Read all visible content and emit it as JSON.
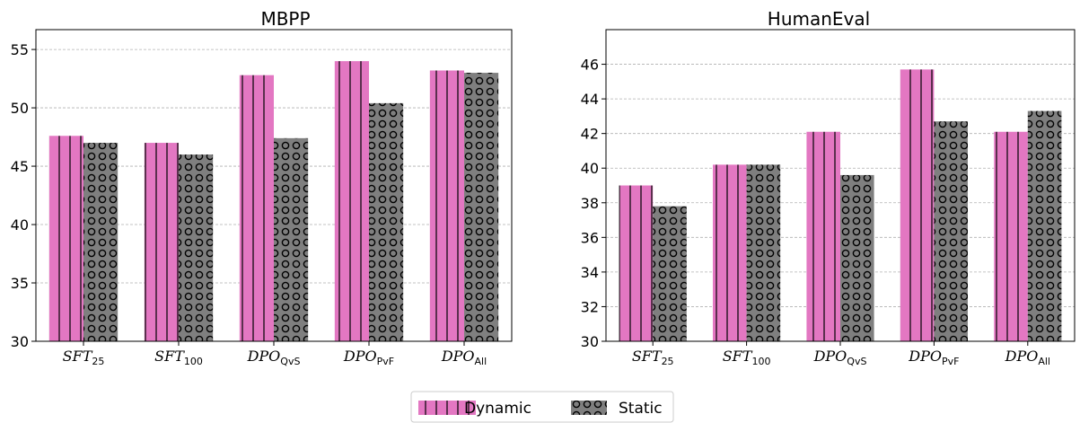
{
  "chart_data": [
    {
      "type": "bar",
      "title": "MBPP",
      "categories": [
        {
          "base": "SFT",
          "sub": "25"
        },
        {
          "base": "SFT",
          "sub": "100"
        },
        {
          "base": "DPO",
          "sub": "QvS"
        },
        {
          "base": "DPO",
          "sub": "PvF"
        },
        {
          "base": "DPO",
          "sub": "All"
        }
      ],
      "series": [
        {
          "name": "Dynamic",
          "values": [
            47.6,
            47.0,
            52.8,
            54.0,
            53.2
          ]
        },
        {
          "name": "Static",
          "values": [
            47.0,
            46.0,
            47.4,
            50.4,
            53.0
          ]
        }
      ],
      "ylim": [
        30,
        56.7
      ],
      "yticks": [
        "30",
        "35",
        "40",
        "45",
        "50",
        "55"
      ],
      "grid": true
    },
    {
      "type": "bar",
      "title": "HumanEval",
      "categories": [
        {
          "base": "SFT",
          "sub": "25"
        },
        {
          "base": "SFT",
          "sub": "100"
        },
        {
          "base": "DPO",
          "sub": "QvS"
        },
        {
          "base": "DPO",
          "sub": "PvF"
        },
        {
          "base": "DPO",
          "sub": "All"
        }
      ],
      "series": [
        {
          "name": "Dynamic",
          "values": [
            39.0,
            40.2,
            42.1,
            45.7,
            42.1
          ]
        },
        {
          "name": "Static",
          "values": [
            37.8,
            40.2,
            39.6,
            42.7,
            43.3
          ]
        }
      ],
      "ylim": [
        30,
        48
      ],
      "yticks": [
        "30",
        "32",
        "34",
        "36",
        "38",
        "40",
        "42",
        "44",
        "46"
      ],
      "grid": true
    }
  ],
  "legend": {
    "placement": "bottom-center",
    "items": [
      {
        "label": "Dynamic",
        "color": "#e377c2",
        "hatch": "vertical-lines"
      },
      {
        "label": "Static",
        "color": "#7f7f7f",
        "hatch": "circles"
      }
    ]
  },
  "colors": {
    "dynamic": "#e377c2",
    "static": "#7f7f7f"
  }
}
